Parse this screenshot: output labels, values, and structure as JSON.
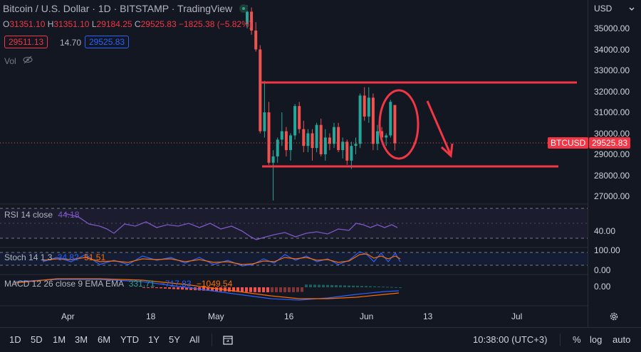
{
  "legend": {
    "title": "Bitcoin / U.S. Dollar · 1D · BITSTAMP · TradingView",
    "ohlc": {
      "o_label": "O",
      "o": "31351.10",
      "h_label": "H",
      "h": "31351.10",
      "l_label": "L",
      "l": "29184.25",
      "c_label": "C",
      "c": "29525.83",
      "change": "−1825.38 (−5.82%)"
    },
    "bid": "29511.13",
    "spread": "14.70",
    "ask": "29525.83",
    "vol_label": "Vol"
  },
  "price_axis": {
    "currency": "USD",
    "ticks": [
      "35000.00",
      "34000.00",
      "33000.00",
      "32000.00",
      "31000.00",
      "30000.00",
      "29000.00",
      "28000.00",
      "27000.00"
    ],
    "symbol_tag": "BTCUSD",
    "last_price": "29525.83",
    "rsi_ticks": [
      "40.00"
    ],
    "stoch_ticks": [
      "100.00",
      "0.00"
    ],
    "macd_ticks": [
      "0.00"
    ]
  },
  "time_axis": [
    "Apr",
    "18",
    "May",
    "16",
    "Jun",
    "13",
    "Jul"
  ],
  "indicators": {
    "rsi": {
      "name": "RSI 14 close",
      "value": "44.18"
    },
    "stoch": {
      "name": "Stoch 14 1 3",
      "k": "34.82",
      "d": "51.51"
    },
    "macd": {
      "name": "MACD 12 26 close 9 EMA EMA",
      "hist": "331.71",
      "macd": "−717.83",
      "signal": "−1049.54"
    }
  },
  "bottom_bar": {
    "ranges": [
      "1D",
      "5D",
      "1M",
      "3M",
      "6M",
      "YTD",
      "1Y",
      "5Y",
      "All"
    ],
    "time": "10:38:00 (UTC+3)",
    "percent": "%",
    "log": "log",
    "auto": "auto"
  },
  "colors": {
    "background": "#131722",
    "up": "#26a69a",
    "down": "#ef5350",
    "annotation": "#f23645",
    "rsi": "#7e57c2",
    "stoch_k": "#2962ff",
    "stoch_d": "#ff6d00"
  },
  "chart_data": {
    "type": "candlestick",
    "price_range": [
      26500,
      36300
    ],
    "candles": [
      [
        35200,
        36100,
        35000,
        35800
      ],
      [
        35800,
        36000,
        34700,
        34900
      ],
      [
        34900,
        35300,
        33900,
        34000
      ],
      [
        34000,
        34200,
        30000,
        30100
      ],
      [
        30100,
        32500,
        29800,
        31000
      ],
      [
        31000,
        31500,
        28500,
        28600
      ],
      [
        28600,
        29200,
        26800,
        28900
      ],
      [
        28900,
        29800,
        28600,
        29700
      ],
      [
        29700,
        31000,
        29400,
        30100
      ],
      [
        30100,
        30300,
        28900,
        29200
      ],
      [
        29200,
        30000,
        28700,
        29900
      ],
      [
        29900,
        31400,
        29700,
        31300
      ],
      [
        31300,
        31500,
        30000,
        30200
      ],
      [
        30200,
        30600,
        29100,
        29400
      ],
      [
        29400,
        30200,
        29100,
        30000
      ],
      [
        30000,
        30200,
        28700,
        29300
      ],
      [
        29300,
        30500,
        29100,
        30400
      ],
      [
        30400,
        30700,
        28900,
        29000
      ],
      [
        29000,
        30200,
        28700,
        29800
      ],
      [
        29800,
        30000,
        29200,
        29500
      ],
      [
        29500,
        30500,
        29300,
        30300
      ],
      [
        30300,
        30500,
        29100,
        29200
      ],
      [
        29200,
        29800,
        28800,
        29600
      ],
      [
        29600,
        29700,
        28500,
        28700
      ],
      [
        28700,
        29600,
        28300,
        29400
      ],
      [
        29400,
        29800,
        29000,
        29500
      ],
      [
        29500,
        31900,
        29300,
        31800
      ],
      [
        31800,
        32200,
        30600,
        30800
      ],
      [
        30800,
        32200,
        30500,
        31700
      ],
      [
        31700,
        31900,
        29200,
        29500
      ],
      [
        29500,
        30400,
        29200,
        30100
      ],
      [
        30100,
        30300,
        29600,
        29800
      ],
      [
        29800,
        30000,
        29400,
        29900
      ],
      [
        29900,
        31600,
        29800,
        31500
      ],
      [
        31351,
        31351,
        29184,
        29526
      ]
    ]
  }
}
